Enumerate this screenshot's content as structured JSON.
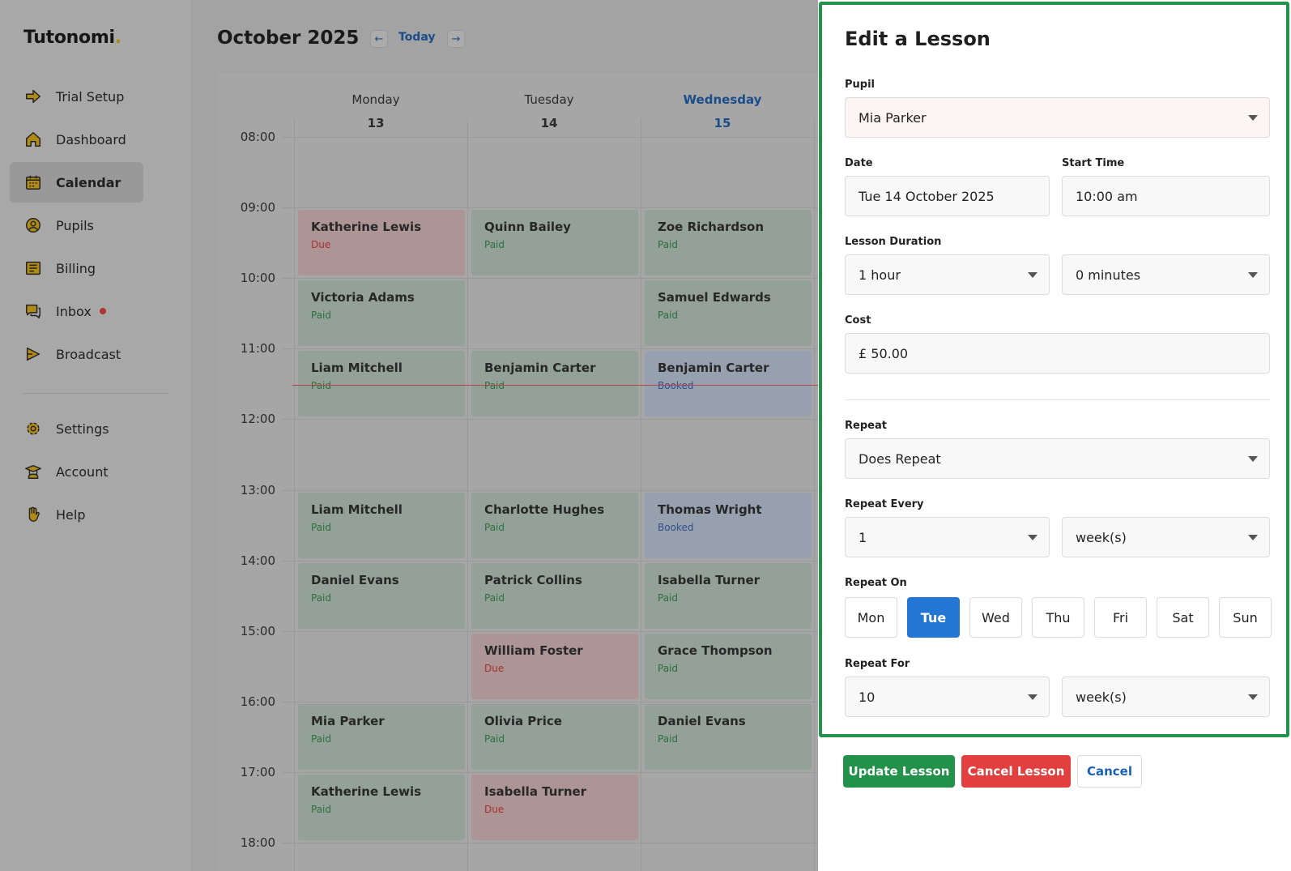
{
  "sidebar": {
    "brand": "Tutonomi",
    "brand_dot": ".",
    "items": [
      {
        "label": "Trial Setup",
        "icon": "arrow-right-icon"
      },
      {
        "label": "Dashboard",
        "icon": "home-icon"
      },
      {
        "label": "Calendar",
        "icon": "calendar-icon",
        "active": true
      },
      {
        "label": "Pupils",
        "icon": "user-circle-icon"
      },
      {
        "label": "Billing",
        "icon": "receipt-icon"
      },
      {
        "label": "Inbox",
        "icon": "chat-icon",
        "badge": true
      },
      {
        "label": "Broadcast",
        "icon": "megaphone-icon"
      },
      {
        "label": "Settings",
        "icon": "gear-icon"
      },
      {
        "label": "Account",
        "icon": "graduate-icon"
      },
      {
        "label": "Help",
        "icon": "hand-icon"
      }
    ]
  },
  "calendar": {
    "month_title": "October 2025",
    "prev_label": "←",
    "today_label": "Today",
    "next_label": "→",
    "days": [
      {
        "name": "Monday",
        "num": "13"
      },
      {
        "name": "Tuesday",
        "num": "14"
      },
      {
        "name": "Wednesday",
        "num": "15",
        "current": true
      }
    ],
    "times": [
      "08:00",
      "09:00",
      "10:00",
      "11:00",
      "12:00",
      "13:00",
      "14:00",
      "15:00",
      "16:00",
      "17:00",
      "18:00"
    ],
    "events": [
      {
        "day": 0,
        "slot": 1,
        "name": "Katherine Lewis",
        "status": "Due"
      },
      {
        "day": 1,
        "slot": 1,
        "name": "Quinn Bailey",
        "status": "Paid"
      },
      {
        "day": 2,
        "slot": 1,
        "name": "Zoe Richardson",
        "status": "Paid"
      },
      {
        "day": 0,
        "slot": 2,
        "name": "Victoria Adams",
        "status": "Paid"
      },
      {
        "day": 2,
        "slot": 2,
        "name": "Samuel Edwards",
        "status": "Paid"
      },
      {
        "day": 0,
        "slot": 3,
        "name": "Liam Mitchell",
        "status": "Paid"
      },
      {
        "day": 1,
        "slot": 3,
        "name": "Benjamin Carter",
        "status": "Paid"
      },
      {
        "day": 2,
        "slot": 3,
        "name": "Benjamin Carter",
        "status": "Booked"
      },
      {
        "day": 0,
        "slot": 5,
        "name": "Liam Mitchell",
        "status": "Paid"
      },
      {
        "day": 1,
        "slot": 5,
        "name": "Charlotte Hughes",
        "status": "Paid"
      },
      {
        "day": 2,
        "slot": 5,
        "name": "Thomas Wright",
        "status": "Booked"
      },
      {
        "day": 0,
        "slot": 6,
        "name": "Daniel Evans",
        "status": "Paid"
      },
      {
        "day": 1,
        "slot": 6,
        "name": "Patrick Collins",
        "status": "Paid"
      },
      {
        "day": 2,
        "slot": 6,
        "name": "Isabella Turner",
        "status": "Paid"
      },
      {
        "day": 1,
        "slot": 7,
        "name": "William Foster",
        "status": "Due"
      },
      {
        "day": 2,
        "slot": 7,
        "name": "Grace Thompson",
        "status": "Paid"
      },
      {
        "day": 0,
        "slot": 8,
        "name": "Mia Parker",
        "status": "Paid"
      },
      {
        "day": 1,
        "slot": 8,
        "name": "Olivia Price",
        "status": "Paid"
      },
      {
        "day": 2,
        "slot": 8,
        "name": "Daniel Evans",
        "status": "Paid"
      },
      {
        "day": 0,
        "slot": 9,
        "name": "Katherine Lewis",
        "status": "Paid"
      },
      {
        "day": 1,
        "slot": 9,
        "name": "Isabella Turner",
        "status": "Due"
      }
    ]
  },
  "panel": {
    "title": "Edit a Lesson",
    "pupil_label": "Pupil",
    "pupil_value": "Mia Parker",
    "date_label": "Date",
    "date_value": "Tue 14 October 2025",
    "start_label": "Start Time",
    "start_value": "10:00 am",
    "duration_label": "Lesson Duration",
    "duration_hours": "1 hour",
    "duration_minutes": "0 minutes",
    "cost_label": "Cost",
    "cost_value": "£ 50.00",
    "repeat_label": "Repeat",
    "repeat_value": "Does Repeat",
    "repeat_every_label": "Repeat Every",
    "repeat_every_value": "1",
    "repeat_every_unit": "week(s)",
    "repeat_on_label": "Repeat On",
    "weekdays": [
      "Mon",
      "Tue",
      "Wed",
      "Thu",
      "Fri",
      "Sat",
      "Sun"
    ],
    "selected_weekday": "Tue",
    "repeat_for_label": "Repeat For",
    "repeat_for_value": "10",
    "repeat_for_unit": "week(s)",
    "update_label": "Update Lesson",
    "cancel_lesson_label": "Cancel Lesson",
    "cancel_label": "Cancel"
  },
  "colors": {
    "accent_green": "#22924a",
    "accent_red": "#e1403f",
    "accent_blue": "#2476d4"
  }
}
